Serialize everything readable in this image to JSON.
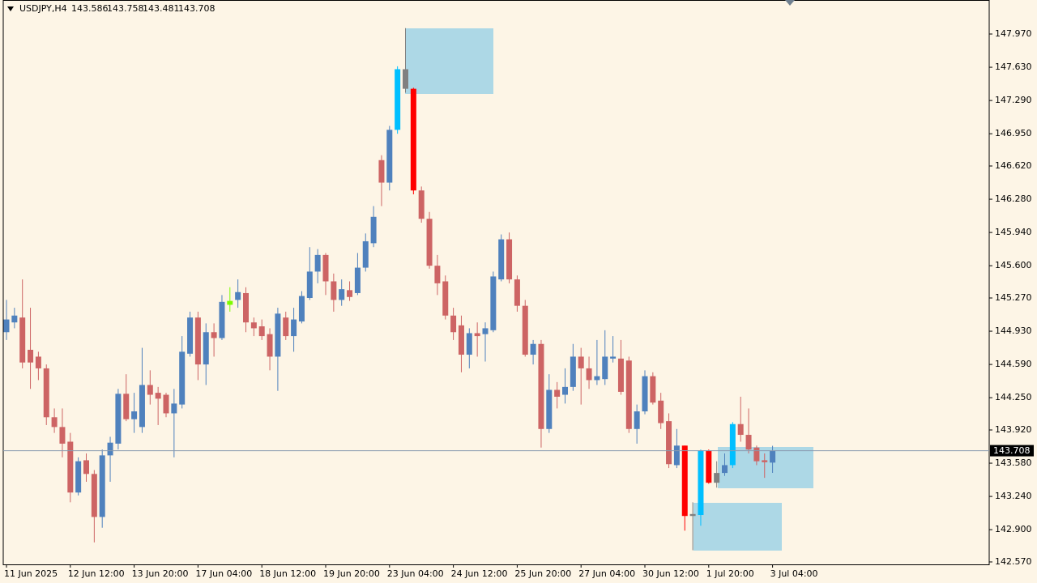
{
  "chart_data": {
    "type": "candlestick",
    "symbol": "USDJPY,H4",
    "categories": [
      "11 Jun 2025",
      null,
      null,
      null,
      null,
      null,
      null,
      null,
      "12 Jun 12:00",
      null,
      null,
      null,
      null,
      null,
      null,
      null,
      "13 Jun 20:00",
      null,
      null,
      null,
      null,
      null,
      null,
      null,
      "17 Jun 04:00",
      null,
      null,
      null,
      null,
      null,
      null,
      null,
      "18 Jun 12:00",
      null,
      null,
      null,
      null,
      null,
      null,
      null,
      "19 Jun 20:00",
      null,
      null,
      null,
      null,
      null,
      null,
      null,
      "23 Jun 04:00",
      null,
      null,
      null,
      null,
      null,
      null,
      null,
      "24 Jun 12:00",
      null,
      null,
      null,
      null,
      null,
      null,
      null,
      "25 Jun 20:00",
      null,
      null,
      null,
      null,
      null,
      null,
      null,
      "27 Jun 04:00",
      null,
      null,
      null,
      null,
      null,
      null,
      null,
      "30 Jun 12:00",
      null,
      null,
      null,
      null,
      null,
      null,
      null,
      "1 Jul 20:00",
      null,
      null,
      null,
      null,
      null,
      null,
      null,
      "3 Jul 04:00"
    ],
    "open": [
      144.92,
      145.02,
      145.07,
      144.74,
      144.67,
      144.55,
      144.05,
      143.95,
      143.8,
      143.28,
      143.61,
      143.47,
      143.03,
      143.66,
      143.78,
      144.29,
      144.03,
      143.95,
      144.38,
      144.3,
      144.28,
      144.09,
      144.18,
      144.7,
      145.07,
      144.59,
      144.92,
      144.86,
      145.2,
      145.25,
      145.32,
      145.02,
      144.98,
      144.9,
      144.67,
      145.07,
      144.88,
      145.03,
      145.27,
      145.54,
      145.71,
      145.44,
      145.25,
      145.35,
      145.32,
      145.58,
      145.83,
      146.68,
      146.45,
      146.99,
      147.61,
      147.41,
      146.37,
      146.08,
      145.6,
      145.44,
      145.09,
      144.99,
      144.69,
      144.91,
      144.9,
      144.94,
      145.46,
      145.87,
      145.46,
      145.19,
      144.69,
      144.8,
      143.93,
      144.33,
      144.28,
      144.36,
      144.67,
      144.55,
      144.43,
      144.44,
      144.65,
      144.65,
      144.63,
      143.93,
      144.11,
      144.47,
      144.22,
      144.01,
      143.56,
      143.76,
      143.06,
      143.05,
      143.71,
      143.38,
      143.48,
      143.56,
      143.98,
      143.87,
      143.74,
      143.61,
      143.586
    ],
    "high": [
      145.25,
      145.17,
      145.46,
      145.17,
      144.72,
      144.59,
      144.14,
      144.14,
      143.89,
      143.64,
      143.68,
      143.51,
      143.72,
      143.85,
      144.34,
      144.49,
      144.3,
      144.76,
      144.53,
      144.36,
      144.3,
      144.34,
      144.88,
      145.13,
      145.13,
      145.01,
      145.01,
      145.3,
      145.38,
      145.46,
      145.38,
      145.07,
      145.05,
      144.96,
      145.17,
      145.13,
      145.17,
      145.34,
      145.79,
      145.77,
      145.73,
      145.52,
      145.46,
      145.44,
      145.73,
      145.93,
      146.21,
      146.73,
      147.03,
      147.64,
      148.03,
      147.42,
      146.41,
      146.15,
      145.71,
      145.5,
      145.17,
      145.09,
      144.96,
      145.02,
      145.02,
      145.54,
      145.92,
      145.94,
      145.5,
      145.25,
      144.84,
      144.84,
      144.49,
      144.41,
      144.55,
      144.8,
      144.76,
      144.67,
      144.84,
      144.94,
      144.88,
      144.84,
      144.67,
      144.18,
      144.53,
      144.51,
      144.3,
      144.09,
      143.93,
      143.76,
      143.18,
      143.72,
      143.72,
      143.6,
      143.68,
      144.0,
      144.26,
      144.14,
      143.76,
      143.68,
      143.758
    ],
    "low": [
      144.84,
      144.96,
      144.55,
      144.34,
      144.43,
      143.97,
      143.89,
      143.64,
      143.18,
      143.25,
      143.39,
      142.77,
      142.92,
      143.39,
      143.72,
      144.01,
      143.89,
      143.89,
      144.18,
      143.97,
      144.05,
      143.64,
      144.14,
      144.67,
      144.43,
      144.38,
      144.67,
      144.84,
      145.13,
      145.17,
      144.92,
      144.88,
      144.84,
      144.53,
      144.32,
      144.84,
      144.72,
      145.01,
      145.25,
      145.42,
      145.3,
      145.13,
      145.19,
      145.24,
      145.3,
      145.54,
      145.79,
      146.21,
      146.37,
      146.95,
      147.37,
      146.33,
      146.04,
      145.57,
      145.3,
      145.05,
      144.84,
      144.51,
      144.55,
      144.67,
      144.62,
      144.92,
      145.44,
      145.42,
      145.13,
      144.67,
      144.59,
      143.74,
      143.89,
      144.14,
      144.19,
      144.32,
      144.18,
      144.34,
      144.38,
      144.38,
      144.61,
      144.28,
      143.89,
      143.78,
      144.08,
      144.18,
      143.93,
      143.53,
      143.53,
      142.89,
      142.69,
      142.94,
      143.37,
      143.33,
      143.45,
      143.53,
      143.8,
      143.68,
      143.56,
      143.43,
      143.481
    ],
    "close": [
      145.05,
      145.09,
      144.61,
      144.61,
      144.55,
      144.05,
      143.95,
      143.78,
      143.28,
      143.6,
      143.47,
      143.03,
      143.66,
      143.79,
      144.29,
      144.03,
      144.11,
      144.38,
      144.28,
      144.24,
      144.09,
      144.19,
      144.72,
      145.07,
      144.59,
      144.92,
      144.86,
      145.23,
      145.24,
      145.33,
      145.02,
      144.96,
      144.88,
      144.67,
      145.11,
      144.88,
      145.05,
      145.29,
      145.54,
      145.71,
      145.44,
      145.25,
      145.36,
      145.28,
      145.58,
      145.85,
      146.1,
      146.45,
      146.99,
      147.61,
      147.41,
      146.37,
      146.08,
      145.6,
      145.42,
      145.09,
      144.92,
      144.69,
      144.91,
      144.88,
      144.96,
      145.49,
      145.87,
      145.46,
      145.19,
      144.69,
      144.8,
      143.93,
      144.33,
      144.26,
      144.36,
      144.67,
      144.55,
      144.43,
      144.47,
      144.67,
      144.67,
      144.31,
      143.93,
      144.11,
      144.47,
      144.2,
      143.99,
      143.57,
      143.76,
      143.04,
      143.04,
      143.71,
      143.38,
      143.48,
      143.56,
      143.98,
      143.87,
      143.72,
      143.6,
      143.59,
      143.708
    ],
    "colors": [
      "#4f81bd",
      "#4f81bd",
      "#cd6464",
      "#cd6464",
      "#cd6464",
      "#cd6464",
      "#cd6464",
      "#cd6464",
      "#cd6464",
      "#4f81bd",
      "#cd6464",
      "#cd6464",
      "#4f81bd",
      "#4f81bd",
      "#4f81bd",
      "#cd6464",
      "#4f81bd",
      "#4f81bd",
      "#cd6464",
      "#cd6464",
      "#cd6464",
      "#4f81bd",
      "#4f81bd",
      "#4f81bd",
      "#cd6464",
      "#4f81bd",
      "#cd6464",
      "#4f81bd",
      "#7cfc00",
      "#4f81bd",
      "#cd6464",
      "#cd6464",
      "#cd6464",
      "#cd6464",
      "#4f81bd",
      "#cd6464",
      "#4f81bd",
      "#4f81bd",
      "#4f81bd",
      "#4f81bd",
      "#cd6464",
      "#cd6464",
      "#4f81bd",
      "#cd6464",
      "#4f81bd",
      "#4f81bd",
      "#4f81bd",
      "#cd6464",
      "#4f81bd",
      "#00bfff",
      "#808080",
      "#ff0000",
      "#cd6464",
      "#cd6464",
      "#cd6464",
      "#cd6464",
      "#cd6464",
      "#cd6464",
      "#4f81bd",
      "#cd6464",
      "#4f81bd",
      "#4f81bd",
      "#4f81bd",
      "#cd6464",
      "#cd6464",
      "#cd6464",
      "#4f81bd",
      "#cd6464",
      "#4f81bd",
      "#cd6464",
      "#4f81bd",
      "#4f81bd",
      "#cd6464",
      "#cd6464",
      "#4f81bd",
      "#4f81bd",
      "#4f81bd",
      "#cd6464",
      "#cd6464",
      "#4f81bd",
      "#4f81bd",
      "#cd6464",
      "#cd6464",
      "#cd6464",
      "#4f81bd",
      "#ff0000",
      "#808080",
      "#00bfff",
      "#ff0000",
      "#808080",
      "#4f81bd",
      "#00bfff",
      "#cd6464",
      "#cd6464",
      "#cd6464",
      "#cd6464",
      "#4f81bd"
    ],
    "ylim": [
      142.545,
      148.318
    ],
    "yticks": [
      {
        "value": 147.97,
        "label": "147.970"
      },
      {
        "value": 147.63,
        "label": "147.630"
      },
      {
        "value": 147.29,
        "label": "147.290"
      },
      {
        "value": 146.95,
        "label": "146.950"
      },
      {
        "value": 146.62,
        "label": "146.620"
      },
      {
        "value": 146.28,
        "label": "146.280"
      },
      {
        "value": 145.94,
        "label": "145.940"
      },
      {
        "value": 145.6,
        "label": "145.600"
      },
      {
        "value": 145.27,
        "label": "145.270"
      },
      {
        "value": 144.93,
        "label": "144.930"
      },
      {
        "value": 144.59,
        "label": "144.590"
      },
      {
        "value": 144.25,
        "label": "144.250"
      },
      {
        "value": 143.92,
        "label": "143.920"
      },
      {
        "value": 143.58,
        "label": "143.580"
      },
      {
        "value": 143.24,
        "label": "143.240"
      },
      {
        "value": 142.9,
        "label": "142.900"
      },
      {
        "value": 142.57,
        "label": "142.570"
      }
    ],
    "grid": false
  }
}
